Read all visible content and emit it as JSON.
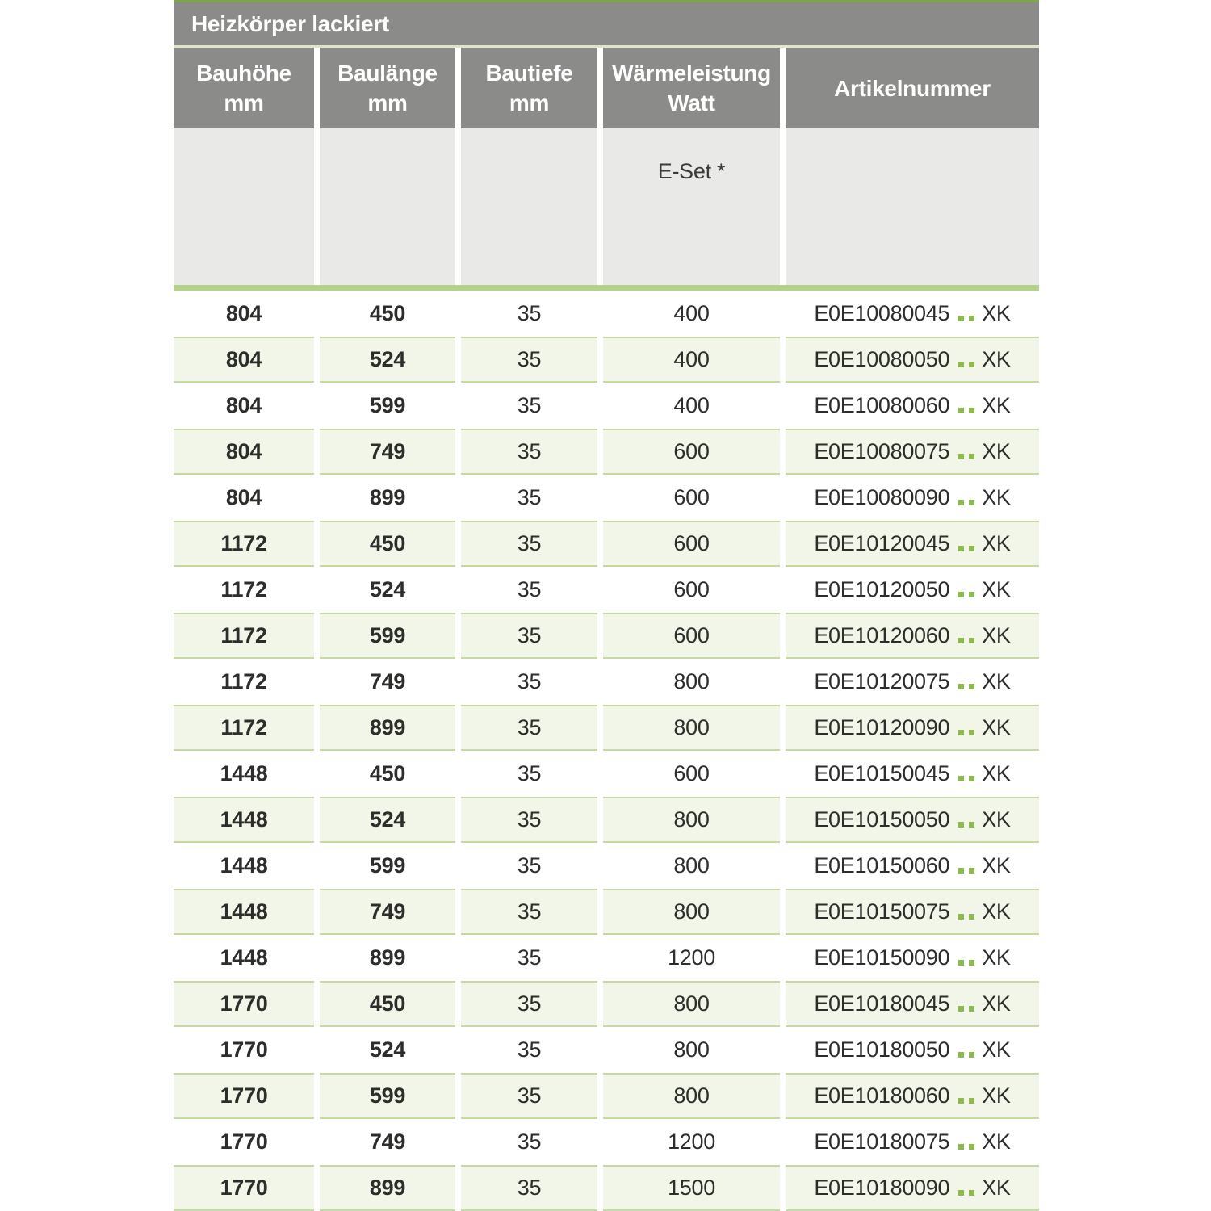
{
  "table": {
    "title": "Heizkörper lackiert",
    "columns": [
      {
        "line1": "Bauhöhe",
        "line2": "mm"
      },
      {
        "line1": "Baulänge",
        "line2": "mm"
      },
      {
        "line1": "Bautiefe",
        "line2": "mm"
      },
      {
        "line1": "Wärmeleistung",
        "line2": "Watt"
      },
      {
        "line1": "Artikelnummer",
        "line2": ""
      }
    ],
    "subheader": {
      "eset_label": "E-Set *"
    },
    "rows": [
      {
        "bauhoehe": "804",
        "baulaenge": "450",
        "bautiefe": "35",
        "watt": "400",
        "artikel_prefix": "E0E10080045",
        "artikel_suffix": "XK"
      },
      {
        "bauhoehe": "804",
        "baulaenge": "524",
        "bautiefe": "35",
        "watt": "400",
        "artikel_prefix": "E0E10080050",
        "artikel_suffix": "XK"
      },
      {
        "bauhoehe": "804",
        "baulaenge": "599",
        "bautiefe": "35",
        "watt": "400",
        "artikel_prefix": "E0E10080060",
        "artikel_suffix": "XK"
      },
      {
        "bauhoehe": "804",
        "baulaenge": "749",
        "bautiefe": "35",
        "watt": "600",
        "artikel_prefix": "E0E10080075",
        "artikel_suffix": "XK"
      },
      {
        "bauhoehe": "804",
        "baulaenge": "899",
        "bautiefe": "35",
        "watt": "600",
        "artikel_prefix": "E0E10080090",
        "artikel_suffix": "XK"
      },
      {
        "bauhoehe": "1172",
        "baulaenge": "450",
        "bautiefe": "35",
        "watt": "600",
        "artikel_prefix": "E0E10120045",
        "artikel_suffix": "XK"
      },
      {
        "bauhoehe": "1172",
        "baulaenge": "524",
        "bautiefe": "35",
        "watt": "600",
        "artikel_prefix": "E0E10120050",
        "artikel_suffix": "XK"
      },
      {
        "bauhoehe": "1172",
        "baulaenge": "599",
        "bautiefe": "35",
        "watt": "600",
        "artikel_prefix": "E0E10120060",
        "artikel_suffix": "XK"
      },
      {
        "bauhoehe": "1172",
        "baulaenge": "749",
        "bautiefe": "35",
        "watt": "800",
        "artikel_prefix": "E0E10120075",
        "artikel_suffix": "XK"
      },
      {
        "bauhoehe": "1172",
        "baulaenge": "899",
        "bautiefe": "35",
        "watt": "800",
        "artikel_prefix": "E0E10120090",
        "artikel_suffix": "XK"
      },
      {
        "bauhoehe": "1448",
        "baulaenge": "450",
        "bautiefe": "35",
        "watt": "600",
        "artikel_prefix": "E0E10150045",
        "artikel_suffix": "XK"
      },
      {
        "bauhoehe": "1448",
        "baulaenge": "524",
        "bautiefe": "35",
        "watt": "800",
        "artikel_prefix": "E0E10150050",
        "artikel_suffix": "XK"
      },
      {
        "bauhoehe": "1448",
        "baulaenge": "599",
        "bautiefe": "35",
        "watt": "800",
        "artikel_prefix": "E0E10150060",
        "artikel_suffix": "XK"
      },
      {
        "bauhoehe": "1448",
        "baulaenge": "749",
        "bautiefe": "35",
        "watt": "800",
        "artikel_prefix": "E0E10150075",
        "artikel_suffix": "XK"
      },
      {
        "bauhoehe": "1448",
        "baulaenge": "899",
        "bautiefe": "35",
        "watt": "1200",
        "artikel_prefix": "E0E10150090",
        "artikel_suffix": "XK"
      },
      {
        "bauhoehe": "1770",
        "baulaenge": "450",
        "bautiefe": "35",
        "watt": "800",
        "artikel_prefix": "E0E10180045",
        "artikel_suffix": "XK"
      },
      {
        "bauhoehe": "1770",
        "baulaenge": "524",
        "bautiefe": "35",
        "watt": "800",
        "artikel_prefix": "E0E10180050",
        "artikel_suffix": "XK"
      },
      {
        "bauhoehe": "1770",
        "baulaenge": "599",
        "bautiefe": "35",
        "watt": "800",
        "artikel_prefix": "E0E10180060",
        "artikel_suffix": "XK"
      },
      {
        "bauhoehe": "1770",
        "baulaenge": "749",
        "bautiefe": "35",
        "watt": "1200",
        "artikel_prefix": "E0E10180075",
        "artikel_suffix": "XK"
      },
      {
        "bauhoehe": "1770",
        "baulaenge": "899",
        "bautiefe": "35",
        "watt": "1500",
        "artikel_prefix": "E0E10180090",
        "artikel_suffix": "XK"
      }
    ],
    "colors": {
      "header_gray": "#8b8b89",
      "accent_green": "#7ea44c",
      "divider_green": "#b5d28a",
      "row_green_bg": "#f2f6e8",
      "row_green_border": "#c6d9a3",
      "dot_green": "#8cba4f",
      "subheader_gray": "#e9e9e7"
    }
  }
}
